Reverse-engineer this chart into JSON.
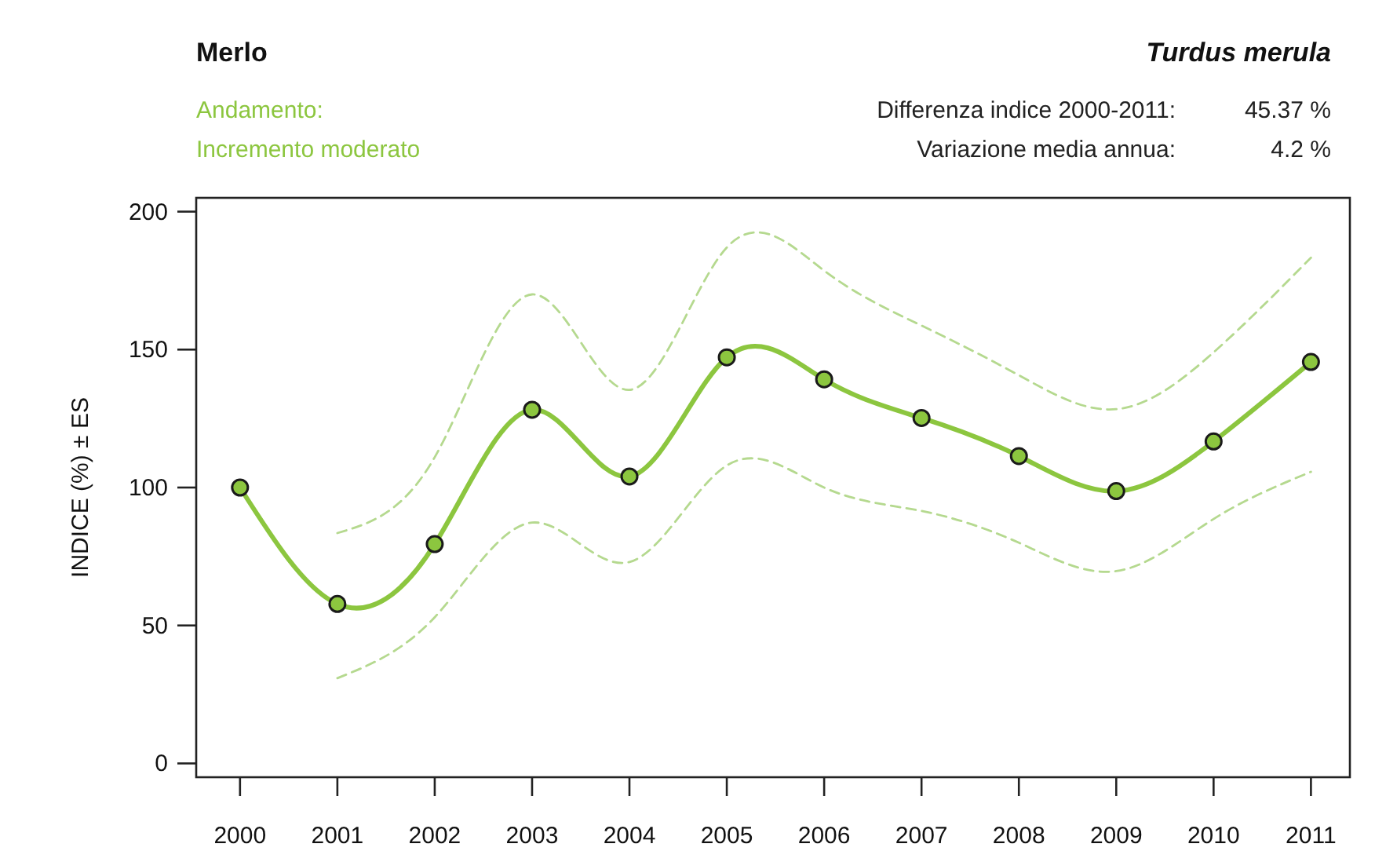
{
  "chart_data": {
    "type": "line",
    "title": "Merlo",
    "subtitle": "Turdus merula",
    "ylabel": "INDICE (%) ± ES",
    "annotations": [
      "Andamento:",
      "Incremento moderato",
      "Differenza indice 2000-2011:",
      "45.37 %",
      "Variazione media annua:",
      "4.2 %"
    ],
    "x": [
      2000,
      2001,
      2002,
      2003,
      2004,
      2005,
      2006,
      2007,
      2008,
      2009,
      2010,
      2011
    ],
    "xlim": [
      1999.55,
      2011.4
    ],
    "xticks": [
      2000,
      2001,
      2002,
      2003,
      2004,
      2005,
      2006,
      2007,
      2008,
      2009,
      2010,
      2011
    ],
    "ylim": [
      -5,
      205
    ],
    "yticks": [
      0,
      50,
      100,
      150,
      200
    ],
    "series": [
      {
        "color": "#b5d98f",
        "line_style": "dashed",
        "marker": "none",
        "x": [
          2001,
          2002,
          2003,
          2004,
          2005,
          2006,
          2007,
          2008,
          2009,
          2010,
          2011
        ],
        "values": [
          83.5,
          111,
          170,
          135.4,
          187,
          178.6,
          158.7,
          140.7,
          128.4,
          149,
          183.3
        ]
      },
      {
        "color": "#b5d98f",
        "line_style": "dashed",
        "marker": "none",
        "x": [
          2001,
          2002,
          2003,
          2004,
          2005,
          2006,
          2007,
          2008,
          2009,
          2010,
          2011
        ],
        "values": [
          30.9,
          53,
          87.3,
          73,
          108,
          100,
          91.5,
          80,
          69.7,
          88.6,
          105.7
        ]
      },
      {
        "color": "#8cc63f",
        "values": [
          100,
          57.8,
          79.5,
          128.2,
          104,
          147.2,
          139.2,
          125.2,
          111.4,
          98.7,
          116.7,
          145.5
        ]
      }
    ],
    "marker": "circle",
    "line_style": "solid",
    "grid": false
  }
}
